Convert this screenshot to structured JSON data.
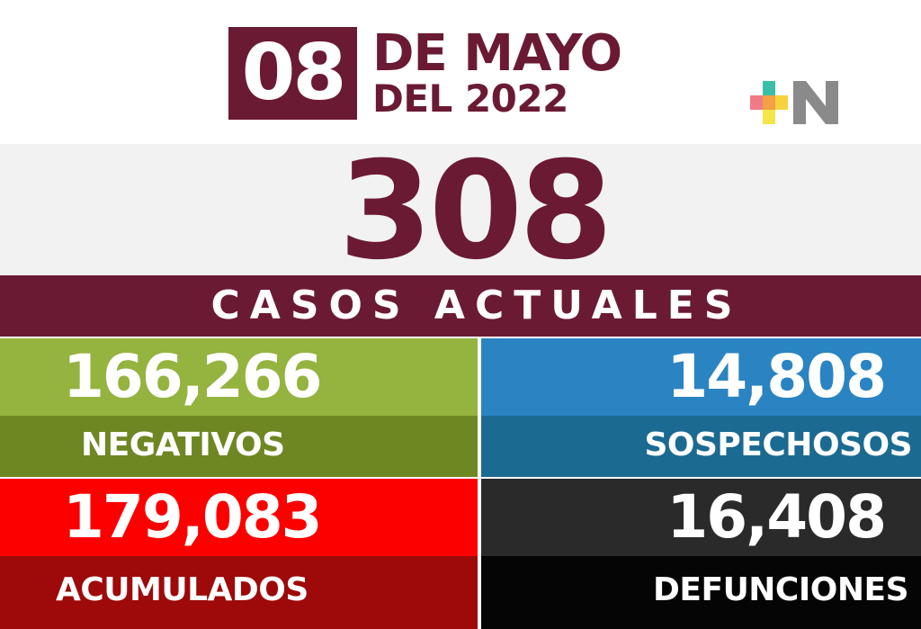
{
  "header": {
    "day": "08",
    "month_line": "DE MAYO",
    "year_line": "DEL 2022",
    "logo_icon": "plus-n-logo-icon"
  },
  "total": {
    "value": "308",
    "label": "CASOS ACTUALES"
  },
  "stats": {
    "negativos": {
      "value": "166,266",
      "label": "NEGATIVOS"
    },
    "sospechosos": {
      "value": "14,808",
      "label": "SOSPECHOSOS"
    },
    "acumulados": {
      "value": "179,083",
      "label": "ACUMULADOS"
    },
    "defunciones": {
      "value": "16,408",
      "label": "DEFUNCIONES"
    }
  },
  "colors": {
    "brand": "#6b1a33",
    "negativos": "#95b33f",
    "sospechosos": "#2a84c2",
    "acumulados": "#fc0000",
    "defunciones": "#2a2a2a"
  }
}
